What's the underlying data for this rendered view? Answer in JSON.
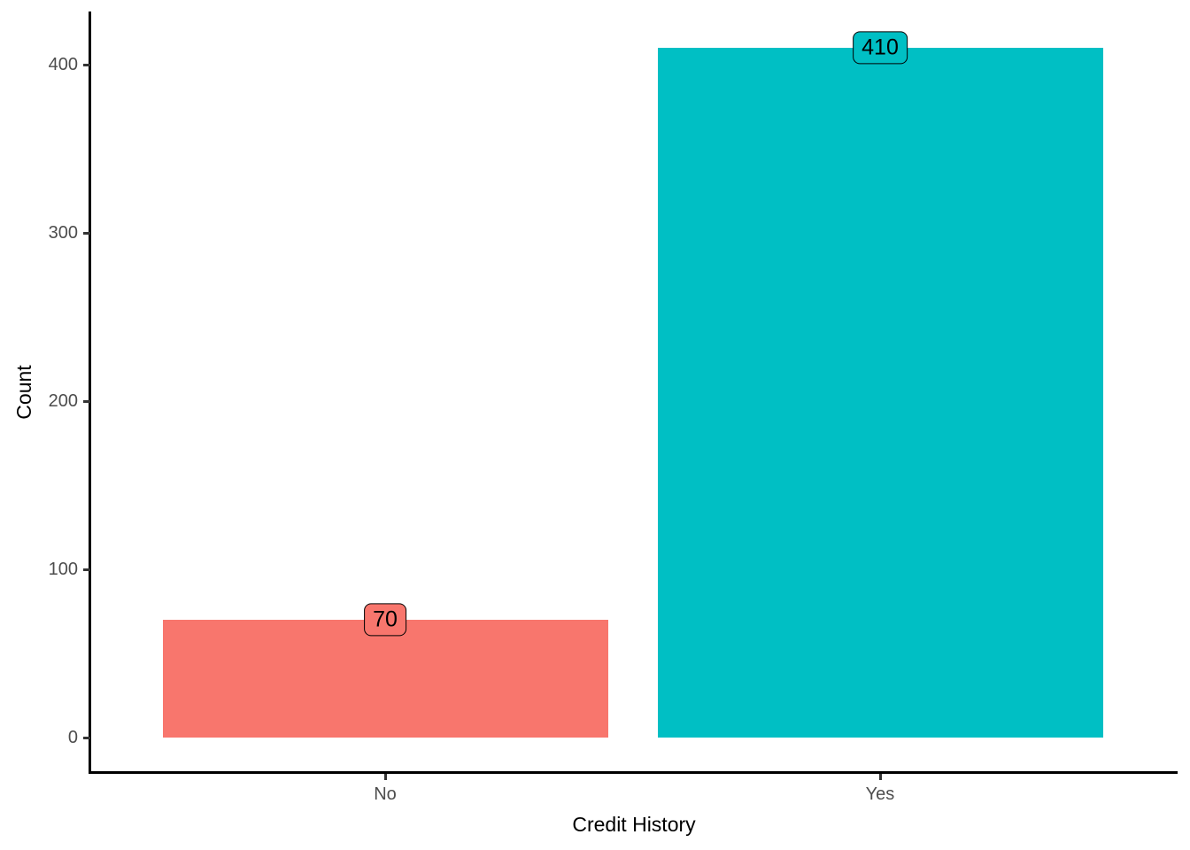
{
  "chart_data": {
    "type": "bar",
    "title": "",
    "xlabel": "Credit History",
    "ylabel": "Count",
    "categories": [
      "No",
      "Yes"
    ],
    "values": [
      70,
      410
    ],
    "bar_labels": [
      "70",
      "410"
    ],
    "bar_colors": [
      "#F8766D",
      "#00BFC4"
    ],
    "yticks": [
      0,
      100,
      200,
      300,
      400
    ],
    "ylim": [
      0,
      431
    ],
    "grid": false,
    "legend_position": "none",
    "axis_color": "#000000",
    "tick_label_color": "#4D4D4D",
    "label_box_style": "rounded rectangle filled with bar color, black border, centered on bar top"
  }
}
